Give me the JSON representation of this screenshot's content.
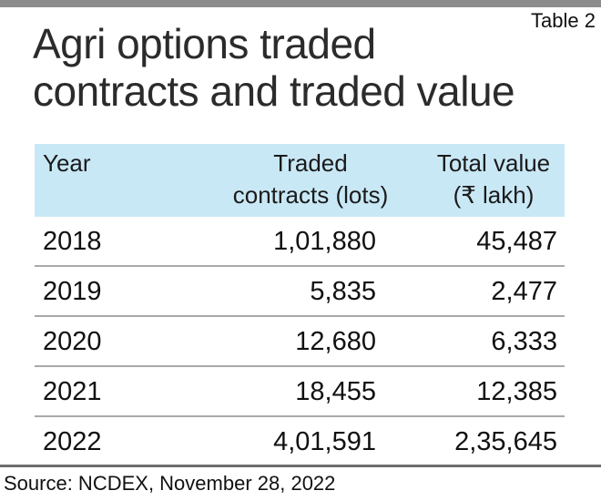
{
  "table_label": "Table 2",
  "title_lines": [
    "Agri options traded",
    "contracts and traded value"
  ],
  "headers": {
    "year": "Year",
    "contracts": [
      "Traded",
      "contracts (lots)"
    ],
    "value": [
      "Total value",
      "(₹ lakh)"
    ]
  },
  "rows": [
    {
      "year": "2018",
      "contracts": "1,01,880",
      "value": "45,487"
    },
    {
      "year": "2019",
      "contracts": "5,835",
      "value": "2,477"
    },
    {
      "year": "2020",
      "contracts": "12,680",
      "value": "6,333"
    },
    {
      "year": "2021",
      "contracts": "18,455",
      "value": "12,385"
    },
    {
      "year": "2022",
      "contracts": "4,01,591",
      "value": "2,35,645"
    }
  ],
  "source": "Source: NCDEX, November 28, 2022",
  "colors": {
    "header_bg": "#c9e8f6",
    "top_bar": "#8c8c8c",
    "row_divider": "#a9a9a9"
  }
}
